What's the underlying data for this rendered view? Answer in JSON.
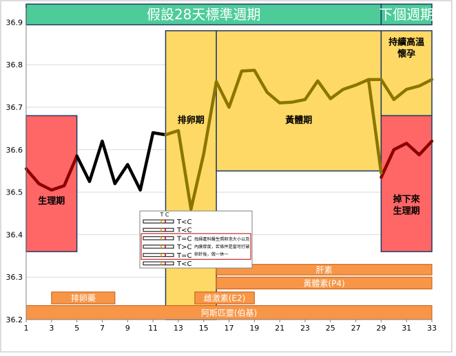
{
  "chart_data": {
    "type": "line",
    "x_ticks": [
      1,
      3,
      5,
      7,
      9,
      11,
      13,
      15,
      17,
      19,
      21,
      23,
      25,
      27,
      29,
      31,
      33
    ],
    "y_ticks": [
      "36.2",
      "36.3",
      "36.4",
      "36.5",
      "36.6",
      "36.7",
      "36.8",
      "36.9"
    ],
    "xlim": [
      1,
      33
    ],
    "ylim": [
      36.2,
      36.92
    ],
    "series": [
      {
        "color": "#8B0000",
        "segments": [
          [
            [
              1,
              36.555
            ],
            [
              2,
              36.52
            ],
            [
              3,
              36.505
            ],
            [
              4,
              36.515
            ],
            [
              5,
              36.585
            ]
          ],
          [
            [
              29,
              36.535
            ],
            [
              30,
              36.6
            ],
            [
              31,
              36.615
            ],
            [
              32,
              36.588
            ],
            [
              33,
              36.62
            ]
          ]
        ]
      },
      {
        "color": "#000000",
        "segments": [
          [
            [
              5,
              36.585
            ],
            [
              6,
              36.525
            ],
            [
              7,
              36.62
            ],
            [
              8,
              36.52
            ],
            [
              9,
              36.565
            ],
            [
              10,
              36.505
            ],
            [
              11,
              36.64
            ],
            [
              12,
              36.635
            ]
          ]
        ]
      },
      {
        "color": "#8B7500",
        "segments": [
          [
            [
              12,
              36.635
            ],
            [
              13,
              36.645
            ],
            [
              14,
              36.46
            ],
            [
              15,
              36.59
            ],
            [
              16,
              36.76
            ],
            [
              17,
              36.7
            ],
            [
              18,
              36.785
            ],
            [
              19,
              36.787
            ],
            [
              20,
              36.735
            ],
            [
              21,
              36.71
            ],
            [
              22,
              36.712
            ],
            [
              23,
              36.718
            ],
            [
              24,
              36.762
            ],
            [
              25,
              36.72
            ],
            [
              26,
              36.742
            ],
            [
              27,
              36.752
            ],
            [
              28,
              36.765
            ],
            [
              29,
              36.545
            ]
          ],
          [
            [
              28,
              36.765
            ],
            [
              29,
              36.765
            ],
            [
              30,
              36.718
            ],
            [
              31,
              36.742
            ],
            [
              32,
              36.75
            ],
            [
              33,
              36.765
            ]
          ]
        ]
      }
    ],
    "header_bands": [
      {
        "label": "假設28天標準週期",
        "from": 1,
        "to": 29
      },
      {
        "label": "下個週期",
        "from": 29,
        "to": 33
      }
    ],
    "phases": [
      {
        "label": "生理期",
        "from": 1,
        "to": 5,
        "ylow": 36.36,
        "yhigh": 36.68,
        "color": "#FF6666"
      },
      {
        "label": "排卵期",
        "from": 12,
        "to": 16,
        "ylow": 36.2,
        "yhigh": 36.88,
        "color": "#FFD966"
      },
      {
        "label": "黃體期",
        "from": 16,
        "to": 29,
        "ylow": 36.55,
        "yhigh": 36.88,
        "color": "#FFD966"
      },
      {
        "label": "持續高溫懷孕",
        "from": 29,
        "to": 33,
        "ylow": 36.68,
        "yhigh": 36.88,
        "color": "#FFD966"
      },
      {
        "label": "掉下來生理期",
        "from": 29,
        "to": 33,
        "ylow": 36.36,
        "yhigh": 36.68,
        "color": "#FF6666"
      }
    ],
    "medication_bars": [
      {
        "label": "肝素",
        "from": 16,
        "to": 33,
        "ylow": 36.305,
        "yhigh": 36.33
      },
      {
        "label": "黃體素(P4)",
        "from": 16,
        "to": 33,
        "ylow": 36.272,
        "yhigh": 36.3
      },
      {
        "label": "排卵藥",
        "from": 3,
        "to": 8,
        "ylow": 36.237,
        "yhigh": 36.265
      },
      {
        "label": "雌激素(E2)",
        "from": 14.3,
        "to": 19,
        "ylow": 36.237,
        "yhigh": 36.265
      },
      {
        "label": "阿斯匹靈(伯基)",
        "from": 1,
        "to": 33,
        "ylow": 36.2,
        "yhigh": 36.233
      }
    ],
    "inset": {
      "header": "T  C",
      "rows": [
        {
          "label": "T<C",
          "box": false
        },
        {
          "label": "T<C",
          "box": false
        },
        {
          "label": "T=C",
          "box": true
        },
        {
          "label": "T>C",
          "box": true
        },
        {
          "label": "T=C",
          "box": true
        },
        {
          "label": "T<C",
          "box": false
        }
      ],
      "note": [
        "找婦產科醫生照卵泡大小以及",
        "內膜厚度，若條件是當可打破",
        "卵針後，做一休一"
      ]
    }
  }
}
